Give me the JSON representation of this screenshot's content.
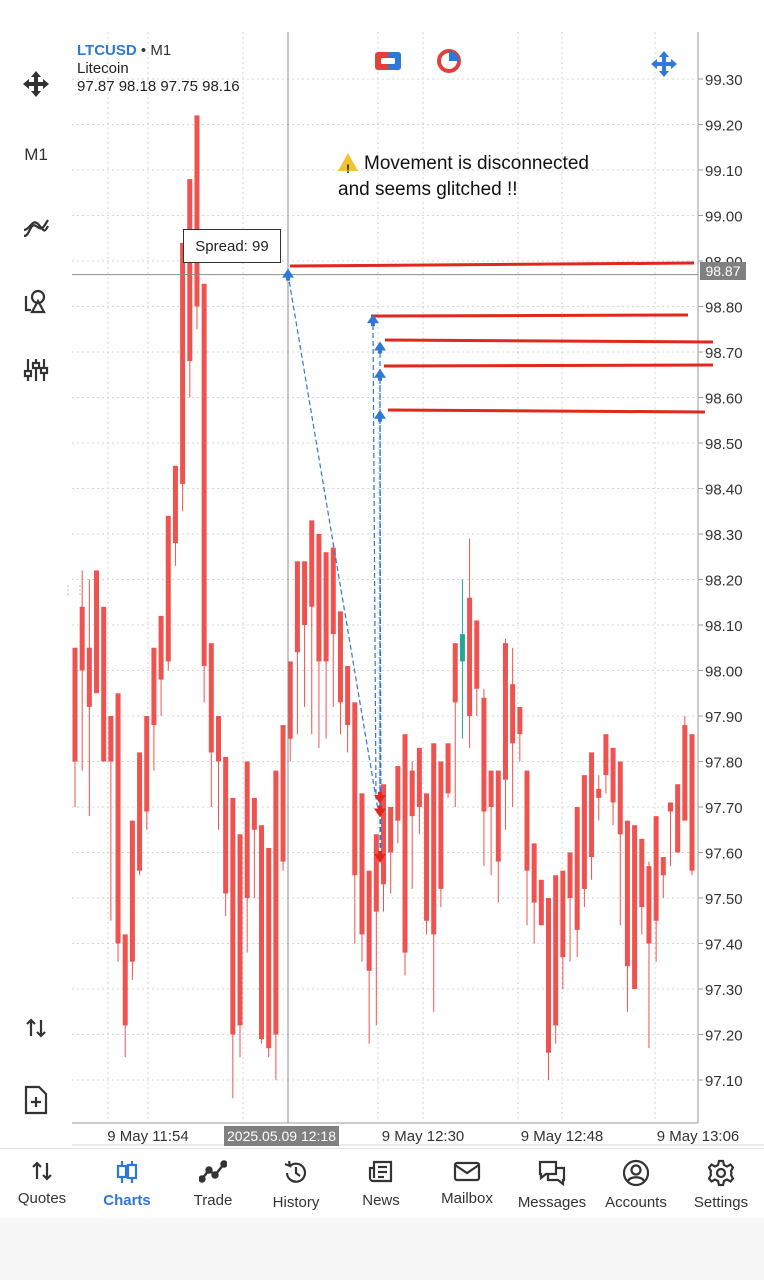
{
  "symbol": {
    "ticker": "LTCUSD",
    "separator": "•",
    "timeframe": "M1",
    "name": "Litecoin",
    "ohlc": "97.87 98.18 97.75 98.16"
  },
  "left_toolbar": {
    "items": [
      {
        "name": "crosshair",
        "icon": "crosshair-move-icon"
      },
      {
        "name": "timeframe",
        "label": "M1"
      },
      {
        "name": "indicators",
        "icon": "indicator-icon"
      },
      {
        "name": "objects",
        "icon": "shapes-icon"
      },
      {
        "name": "settings",
        "icon": "sliders-icon"
      },
      {
        "name": "trade",
        "icon": "up-down-arrows-icon"
      },
      {
        "name": "new-order",
        "icon": "document-plus-icon"
      }
    ]
  },
  "annotation": {
    "line1": "Movement is disconnected",
    "line2": "and seems glitched !!"
  },
  "spread_label": "Spread: 99",
  "current_price_tag": "98.87",
  "crosshair_time_tag": "2025.05.09 12:18",
  "colors": {
    "bull": "#26a69a",
    "bear": "#ef5350",
    "accent": "#2f78d4",
    "marker": "#e0281c"
  },
  "chart_data": {
    "type": "candlestick",
    "ylim": [
      97.02,
      99.35
    ],
    "y_ticks": [
      "99.30",
      "99.20",
      "99.10",
      "99.00",
      "98.90",
      "98.80",
      "98.70",
      "98.60",
      "98.50",
      "98.40",
      "98.30",
      "98.20",
      "98.10",
      "98.00",
      "97.90",
      "97.80",
      "97.70",
      "97.60",
      "97.50",
      "97.40",
      "97.30",
      "97.20",
      "97.10"
    ],
    "x_tick_labels": [
      "9 May 11:54",
      "9 May 12:30",
      "9 May 12:48",
      "9 May 13:06"
    ],
    "candles": [
      [
        97.97,
        98.05,
        97.8,
        97.7
      ],
      [
        98.22,
        98.14,
        98.0,
        97.78
      ],
      [
        98.2,
        98.05,
        97.92,
        97.68
      ],
      [
        98.15,
        98.22,
        97.95,
        98.15
      ],
      [
        98.1,
        98.14,
        97.8,
        97.86
      ],
      [
        97.9,
        97.9,
        97.8,
        97.45
      ],
      [
        97.9,
        97.95,
        97.4,
        97.36
      ],
      [
        97.42,
        97.42,
        97.22,
        97.15
      ],
      [
        97.6,
        97.67,
        97.36,
        97.32
      ],
      [
        97.65,
        97.82,
        97.56,
        97.55
      ],
      [
        97.8,
        97.9,
        97.69,
        97.65
      ],
      [
        97.92,
        98.05,
        97.88,
        97.78
      ],
      [
        98.05,
        98.12,
        97.98,
        97.9
      ],
      [
        98.3,
        98.34,
        98.02,
        98.0
      ],
      [
        98.35,
        98.45,
        98.28,
        98.23
      ],
      [
        98.7,
        98.94,
        98.41,
        98.35
      ],
      [
        98.9,
        99.08,
        98.68,
        98.6
      ],
      [
        98.85,
        99.22,
        98.8,
        98.75
      ],
      [
        98.8,
        98.85,
        98.01,
        97.93
      ],
      [
        98.0,
        98.06,
        97.82,
        97.7
      ],
      [
        97.85,
        97.9,
        97.8,
        97.65
      ],
      [
        97.8,
        97.81,
        97.51,
        97.46
      ],
      [
        97.72,
        97.72,
        97.2,
        97.06
      ],
      [
        97.5,
        97.64,
        97.22,
        97.15
      ],
      [
        97.65,
        97.8,
        97.5,
        97.38
      ],
      [
        97.7,
        97.72,
        97.65,
        97.5
      ],
      [
        97.64,
        97.66,
        97.19,
        97.18
      ],
      [
        97.4,
        97.61,
        97.17,
        97.15
      ],
      [
        97.58,
        97.78,
        97.2,
        97.1
      ],
      [
        97.8,
        97.88,
        97.58,
        97.56
      ],
      [
        97.91,
        98.02,
        97.85,
        97.8
      ],
      [
        98.14,
        98.24,
        98.04,
        97.86
      ],
      [
        98.18,
        98.24,
        98.1,
        97.92
      ],
      [
        98.28,
        98.33,
        98.14,
        97.86
      ],
      [
        98.16,
        98.3,
        98.02,
        97.83
      ],
      [
        98.2,
        98.26,
        98.02,
        97.85
      ],
      [
        98.28,
        98.27,
        98.08,
        97.92
      ],
      [
        98.05,
        98.13,
        97.93,
        97.86
      ],
      [
        97.92,
        98.01,
        97.88,
        97.82
      ],
      [
        97.82,
        97.93,
        97.55,
        97.4
      ],
      [
        97.7,
        97.73,
        97.42,
        97.36
      ],
      [
        97.52,
        97.56,
        97.34,
        97.18
      ],
      [
        97.6,
        97.64,
        97.47,
        97.22
      ],
      [
        97.7,
        97.75,
        97.53,
        97.47
      ],
      [
        97.66,
        97.7,
        97.6,
        97.51
      ],
      [
        97.79,
        97.79,
        97.67,
        97.62
      ],
      [
        97.82,
        97.86,
        97.38,
        97.33
      ],
      [
        97.8,
        97.78,
        97.68,
        97.52
      ],
      [
        97.75,
        97.83,
        97.7,
        97.64
      ],
      [
        97.7,
        97.73,
        97.45,
        97.42
      ],
      [
        97.84,
        97.84,
        97.42,
        97.25
      ],
      [
        97.74,
        97.8,
        97.52,
        97.48
      ],
      [
        97.78,
        97.84,
        97.73,
        97.72
      ],
      [
        98.0,
        98.06,
        97.93,
        97.7
      ],
      [
        98.2,
        98.02,
        98.08,
        97.85
      ],
      [
        98.29,
        98.16,
        97.9,
        97.83
      ],
      [
        98.11,
        98.11,
        97.96,
        97.9
      ],
      [
        97.96,
        97.94,
        97.69,
        97.57
      ],
      [
        97.72,
        97.78,
        97.7,
        97.55
      ],
      [
        97.75,
        97.78,
        97.58,
        97.49
      ],
      [
        98.07,
        98.06,
        97.76,
        97.65
      ],
      [
        98.05,
        97.97,
        97.84,
        97.7
      ],
      [
        97.87,
        97.92,
        97.86,
        97.8
      ],
      [
        97.66,
        97.78,
        97.56,
        97.44
      ],
      [
        97.62,
        97.62,
        97.49,
        97.4
      ],
      [
        97.51,
        97.54,
        97.44,
        97.45
      ],
      [
        97.5,
        97.5,
        97.16,
        97.1
      ],
      [
        97.53,
        97.55,
        97.22,
        97.18
      ],
      [
        97.55,
        97.56,
        97.37,
        97.3
      ],
      [
        97.6,
        97.6,
        97.5,
        97.36
      ],
      [
        97.7,
        97.7,
        97.43,
        97.37
      ],
      [
        97.75,
        97.77,
        97.52,
        97.48
      ],
      [
        97.77,
        97.82,
        97.59,
        97.54
      ],
      [
        97.77,
        97.74,
        97.72,
        97.67
      ],
      [
        97.85,
        97.86,
        97.77,
        97.73
      ],
      [
        97.82,
        97.83,
        97.71,
        97.66
      ],
      [
        97.8,
        97.8,
        97.64,
        97.44
      ],
      [
        97.56,
        97.67,
        97.35,
        97.25
      ],
      [
        97.6,
        97.66,
        97.3,
        97.3
      ],
      [
        97.55,
        97.63,
        97.48,
        97.42
      ],
      [
        97.58,
        97.57,
        97.4,
        97.17
      ],
      [
        97.59,
        97.68,
        97.45,
        97.36
      ],
      [
        97.58,
        97.59,
        97.55,
        97.5
      ],
      [
        97.7,
        97.71,
        97.69,
        97.57
      ],
      [
        97.7,
        97.75,
        97.6,
        97.64
      ],
      [
        97.9,
        97.88,
        97.67,
        97.69
      ],
      [
        97.75,
        97.86,
        97.56,
        97.55
      ]
    ],
    "order_markers": [
      {
        "type": "buy",
        "price": 98.87
      },
      {
        "type": "buy",
        "price": 98.77
      },
      {
        "type": "buy",
        "price": 98.71
      },
      {
        "type": "buy",
        "price": 98.65
      },
      {
        "type": "buy",
        "price": 98.56
      },
      {
        "type": "sell",
        "price": 97.72
      },
      {
        "type": "sell",
        "price": 97.69
      },
      {
        "type": "sell",
        "price": 97.59
      }
    ]
  },
  "bottom_nav": [
    {
      "id": "quotes",
      "label": "Quotes"
    },
    {
      "id": "charts",
      "label": "Charts",
      "active": true
    },
    {
      "id": "trade",
      "label": "Trade"
    },
    {
      "id": "history",
      "label": "History"
    },
    {
      "id": "news",
      "label": "News"
    },
    {
      "id": "mailbox",
      "label": "Mailbox"
    },
    {
      "id": "messages",
      "label": "Messages"
    },
    {
      "id": "accounts",
      "label": "Accounts"
    },
    {
      "id": "settings",
      "label": "Settings"
    }
  ]
}
